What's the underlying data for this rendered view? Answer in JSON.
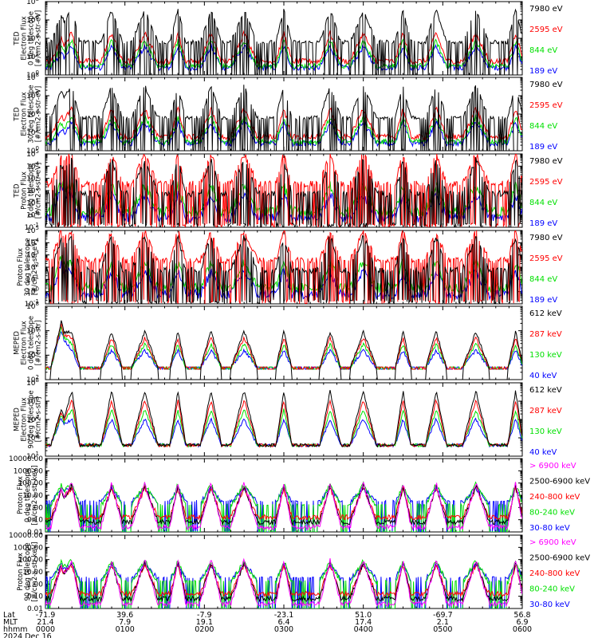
{
  "chart_data": {
    "type": "line",
    "x_axis": {
      "rows": [
        {
          "label": "Lat",
          "values": [
            "-71.9",
            "39.6",
            "-7.9",
            "-23.1",
            "51.0",
            "-69.7",
            "56.8"
          ]
        },
        {
          "label": "MLT",
          "values": [
            "21.4",
            "7.9",
            "19.1",
            "6.4",
            "17.4",
            "2.1",
            "6.9"
          ]
        },
        {
          "label": "hhmm",
          "values": [
            "0000",
            "0100",
            "0200",
            "0300",
            "0400",
            "0500",
            "0600"
          ]
        }
      ],
      "date": "2024 Dec 16"
    },
    "panels": [
      {
        "ylabel": [
          "TED",
          "Electron Flux",
          "0 deg telescope",
          "[#/cm2-s-str-eV]"
        ],
        "yticks": [
          "10^8",
          "10^6",
          "10^4",
          "10^2",
          "10^0"
        ],
        "ylog": [
          0,
          8
        ],
        "legend": [
          {
            "label": "7980 eV",
            "color": "#000000"
          },
          {
            "label": "2595 eV",
            "color": "#ff0000"
          },
          {
            "label": "844 eV",
            "color": "#00e000"
          },
          {
            "label": "189 eV",
            "color": "#0000ff"
          }
        ],
        "profile": "ted"
      },
      {
        "ylabel": [
          "TED",
          "Electron Flux",
          "30 deg telescope",
          "[#/cm2-s-str-eV]"
        ],
        "yticks": [
          "10^8",
          "10^6",
          "10^4",
          "10^2",
          "10^0"
        ],
        "ylog": [
          0,
          8
        ],
        "legend": [
          {
            "label": "7980 eV",
            "color": "#000000"
          },
          {
            "label": "2595 eV",
            "color": "#ff0000"
          },
          {
            "label": "844 eV",
            "color": "#00e000"
          },
          {
            "label": "189 eV",
            "color": "#0000ff"
          }
        ],
        "profile": "ted"
      },
      {
        "ylabel": [
          "TED",
          "Proton Flux",
          "0 deg telescope",
          "[#/cm2-s-str-eV]"
        ],
        "yticks": [
          "10^5",
          "10^4",
          "10^3",
          "10^2",
          "10^1",
          "10^0",
          "10^-1"
        ],
        "ylog": [
          -1,
          5
        ],
        "legend": [
          {
            "label": "7980 eV",
            "color": "#000000"
          },
          {
            "label": "2595 eV",
            "color": "#ff0000"
          },
          {
            "label": "844 eV",
            "color": "#00e000"
          },
          {
            "label": "189 eV",
            "color": "#0000ff"
          }
        ],
        "profile": "tedp"
      },
      {
        "ylabel": [
          "Proton Flux",
          "30 deg telescope",
          "[#/cm2-s-str-eV]"
        ],
        "yticks": [
          "10^5",
          "10^4",
          "10^3",
          "10^2",
          "10^1",
          "10^0",
          "10^-1"
        ],
        "ylog": [
          -1,
          5
        ],
        "legend": [
          {
            "label": "7980 eV",
            "color": "#000000"
          },
          {
            "label": "2595 eV",
            "color": "#ff0000"
          },
          {
            "label": "844 eV",
            "color": "#00e000"
          },
          {
            "label": "189 eV",
            "color": "#0000ff"
          }
        ],
        "profile": "tedp"
      },
      {
        "ylabel": [
          "MEPED",
          "Electron Flux",
          "0 deg telescope",
          "[#/cm2-s-str]"
        ],
        "yticks": [
          "10^8",
          "10^6",
          "10^4",
          "10^2"
        ],
        "ylog": [
          1,
          8
        ],
        "legend": [
          {
            "label": "612 keV",
            "color": "#000000"
          },
          {
            "label": "287 keV",
            "color": "#ff0000"
          },
          {
            "label": "130 keV",
            "color": "#00e000"
          },
          {
            "label": "40 keV",
            "color": "#0000ff"
          }
        ],
        "profile": "mep0"
      },
      {
        "ylabel": [
          "MEPED",
          "Electron Flux",
          "90 deg telescope",
          "[#/cm2-s-str]"
        ],
        "yticks": [
          "10^8",
          "10^6",
          "10^4",
          "10^2",
          "10^1"
        ],
        "ylog": [
          1,
          8
        ],
        "legend": [
          {
            "label": "612 keV",
            "color": "#000000"
          },
          {
            "label": "287 keV",
            "color": "#ff0000"
          },
          {
            "label": "130 keV",
            "color": "#00e000"
          },
          {
            "label": "40 keV",
            "color": "#0000ff"
          }
        ],
        "profile": "mep90"
      },
      {
        "ylabel": [
          "Proton Flux",
          "0 deg telescope",
          "[#/cm2-s-str-keV]"
        ],
        "yticks": [
          "10000.00",
          "1000.00",
          "100.00",
          "10.00",
          "1.00",
          "0.10",
          "0.01"
        ],
        "ylog": [
          -2,
          4
        ],
        "legend": [
          {
            "label": "> 6900 keV",
            "color": "#ff00ff"
          },
          {
            "label": "2500-6900 keV",
            "color": "#000000"
          },
          {
            "label": "240-800 keV",
            "color": "#ff0000"
          },
          {
            "label": "80-240 keV",
            "color": "#00e000"
          },
          {
            "label": "30-80 keV",
            "color": "#0000ff"
          }
        ],
        "profile": "pro"
      },
      {
        "ylabel": [
          "Proton Flux",
          "90 deg telescope",
          "[#/cm2-s-str-keV]"
        ],
        "yticks": [
          "10000.00",
          "1000.00",
          "100.00",
          "10.00",
          "1.00",
          "0.10",
          "0.01"
        ],
        "ylog": [
          -2,
          4
        ],
        "legend": [
          {
            "label": "> 6900 keV",
            "color": "#ff00ff"
          },
          {
            "label": "2500-6900 keV",
            "color": "#000000"
          },
          {
            "label": "240-800 keV",
            "color": "#ff0000"
          },
          {
            "label": "80-240 keV",
            "color": "#00e000"
          },
          {
            "label": "30-80 keV",
            "color": "#0000ff"
          }
        ],
        "profile": "pro"
      }
    ],
    "passes_hhmm": [
      "0020",
      "0050",
      "0115",
      "0140",
      "0205",
      "0230",
      "0300",
      "0335",
      "0400",
      "0430",
      "0455",
      "0525",
      "0555"
    ]
  }
}
